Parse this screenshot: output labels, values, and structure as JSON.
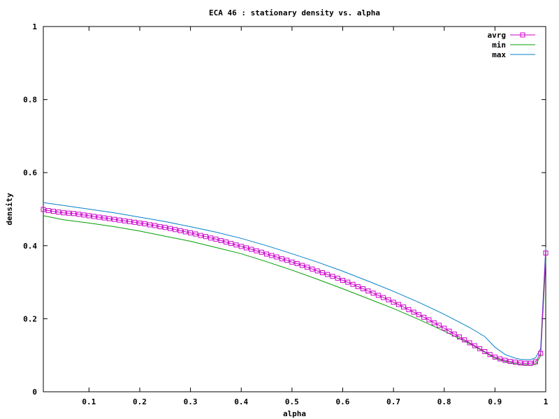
{
  "chart_data": {
    "type": "line",
    "title": "ECA 46 : stationary density vs. alpha",
    "xlabel": "alpha",
    "ylabel": "density",
    "xlim": [
      0.01,
      1.0
    ],
    "ylim": [
      0,
      1
    ],
    "xticks": [
      0.1,
      0.2,
      0.3,
      0.4,
      0.5,
      0.6,
      0.7,
      0.8,
      0.9,
      1
    ],
    "xtick_labels": [
      "0.1",
      "0.2",
      "0.3",
      "0.4",
      "0.5",
      "0.6",
      "0.7",
      "0.8",
      "0.9",
      "1"
    ],
    "yticks": [
      0,
      0.2,
      0.4,
      0.6,
      0.8,
      1
    ],
    "ytick_labels": [
      "0",
      "0.2",
      "0.4",
      "0.6",
      "0.8",
      "1"
    ],
    "grid": false,
    "legend_position": "top-right",
    "series": [
      {
        "name": "avrg",
        "color": "#cc00cc",
        "marker": "square",
        "x": [
          0.01,
          0.02,
          0.03,
          0.04,
          0.05,
          0.06,
          0.07,
          0.08,
          0.09,
          0.1,
          0.11,
          0.12,
          0.13,
          0.14,
          0.15,
          0.16,
          0.17,
          0.18,
          0.19,
          0.2,
          0.21,
          0.22,
          0.23,
          0.24,
          0.25,
          0.26,
          0.27,
          0.28,
          0.29,
          0.3,
          0.31,
          0.32,
          0.33,
          0.34,
          0.35,
          0.36,
          0.37,
          0.38,
          0.39,
          0.4,
          0.41,
          0.42,
          0.43,
          0.44,
          0.45,
          0.46,
          0.47,
          0.48,
          0.49,
          0.5,
          0.51,
          0.52,
          0.53,
          0.54,
          0.55,
          0.56,
          0.57,
          0.58,
          0.59,
          0.6,
          0.61,
          0.62,
          0.63,
          0.64,
          0.65,
          0.66,
          0.67,
          0.68,
          0.69,
          0.7,
          0.71,
          0.72,
          0.73,
          0.74,
          0.75,
          0.76,
          0.77,
          0.78,
          0.79,
          0.8,
          0.81,
          0.82,
          0.83,
          0.84,
          0.85,
          0.86,
          0.87,
          0.88,
          0.89,
          0.9,
          0.91,
          0.92,
          0.93,
          0.94,
          0.95,
          0.96,
          0.97,
          0.98,
          0.99,
          1.0
        ],
        "values": [
          0.499,
          0.496,
          0.494,
          0.492,
          0.49,
          0.489,
          0.488,
          0.486,
          0.484,
          0.482,
          0.48,
          0.478,
          0.476,
          0.474,
          0.472,
          0.47,
          0.468,
          0.466,
          0.464,
          0.462,
          0.46,
          0.457,
          0.455,
          0.452,
          0.45,
          0.447,
          0.444,
          0.441,
          0.438,
          0.435,
          0.432,
          0.428,
          0.425,
          0.421,
          0.418,
          0.414,
          0.41,
          0.406,
          0.402,
          0.398,
          0.394,
          0.39,
          0.386,
          0.382,
          0.377,
          0.373,
          0.369,
          0.364,
          0.36,
          0.355,
          0.351,
          0.346,
          0.341,
          0.336,
          0.331,
          0.326,
          0.321,
          0.316,
          0.311,
          0.305,
          0.3,
          0.294,
          0.288,
          0.282,
          0.276,
          0.27,
          0.264,
          0.258,
          0.252,
          0.245,
          0.239,
          0.232,
          0.225,
          0.218,
          0.211,
          0.204,
          0.197,
          0.189,
          0.182,
          0.174,
          0.166,
          0.158,
          0.15,
          0.142,
          0.134,
          0.126,
          0.118,
          0.11,
          0.102,
          0.095,
          0.09,
          0.086,
          0.083,
          0.081,
          0.079,
          0.078,
          0.078,
          0.082,
          0.105,
          0.38
        ]
      },
      {
        "name": "min",
        "color": "#00a000",
        "marker": "none",
        "x": [
          0.01,
          0.05,
          0.1,
          0.15,
          0.2,
          0.25,
          0.3,
          0.35,
          0.4,
          0.45,
          0.5,
          0.55,
          0.6,
          0.65,
          0.7,
          0.75,
          0.8,
          0.85,
          0.88,
          0.9,
          0.92,
          0.94,
          0.95,
          0.96,
          0.97,
          0.98,
          0.99,
          1.0
        ],
        "values": [
          0.482,
          0.471,
          0.462,
          0.452,
          0.44,
          0.426,
          0.412,
          0.395,
          0.378,
          0.356,
          0.333,
          0.308,
          0.282,
          0.255,
          0.228,
          0.198,
          0.166,
          0.132,
          0.108,
          0.092,
          0.083,
          0.077,
          0.075,
          0.074,
          0.073,
          0.075,
          0.098,
          0.36
        ]
      },
      {
        "name": "max",
        "color": "#0080cc",
        "marker": "none",
        "x": [
          0.01,
          0.05,
          0.1,
          0.15,
          0.2,
          0.25,
          0.3,
          0.35,
          0.4,
          0.45,
          0.5,
          0.55,
          0.6,
          0.65,
          0.7,
          0.75,
          0.8,
          0.85,
          0.88,
          0.9,
          0.92,
          0.94,
          0.95,
          0.96,
          0.97,
          0.98,
          0.99,
          1.0
        ],
        "values": [
          0.518,
          0.51,
          0.5,
          0.49,
          0.478,
          0.466,
          0.452,
          0.437,
          0.42,
          0.4,
          0.378,
          0.355,
          0.33,
          0.303,
          0.275,
          0.245,
          0.212,
          0.176,
          0.151,
          0.122,
          0.102,
          0.092,
          0.089,
          0.088,
          0.088,
          0.093,
          0.118,
          0.395
        ]
      }
    ]
  }
}
